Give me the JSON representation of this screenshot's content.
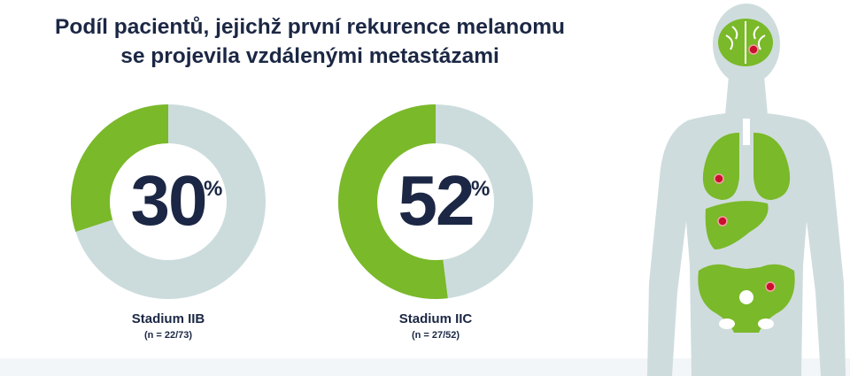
{
  "title": {
    "line1": "Podíl pacientů, jejichž první rekurence melanomu",
    "line2": "se projevila vzdálenými metastázami"
  },
  "colors": {
    "accent": "#7ab929",
    "remainder": "#ccdcdd",
    "text": "#1b2744",
    "body_figure": "#cfdcdd",
    "metastasis_dot": "#c8102e"
  },
  "chart_data": [
    {
      "type": "pie",
      "value_percent": 30,
      "value_label": "30",
      "unit": "%",
      "category": "Stadium IIB",
      "sample": "(n = 22/73)",
      "numerator": 22,
      "denominator": 73
    },
    {
      "type": "pie",
      "value_percent": 52,
      "value_label": "52",
      "unit": "%",
      "category": "Stadium IIC",
      "sample": "(n = 27/52)",
      "numerator": 27,
      "denominator": 52
    }
  ],
  "illustration": {
    "organs": [
      "brain-icon",
      "lungs-icon",
      "liver-icon",
      "pelvis-icon"
    ]
  }
}
